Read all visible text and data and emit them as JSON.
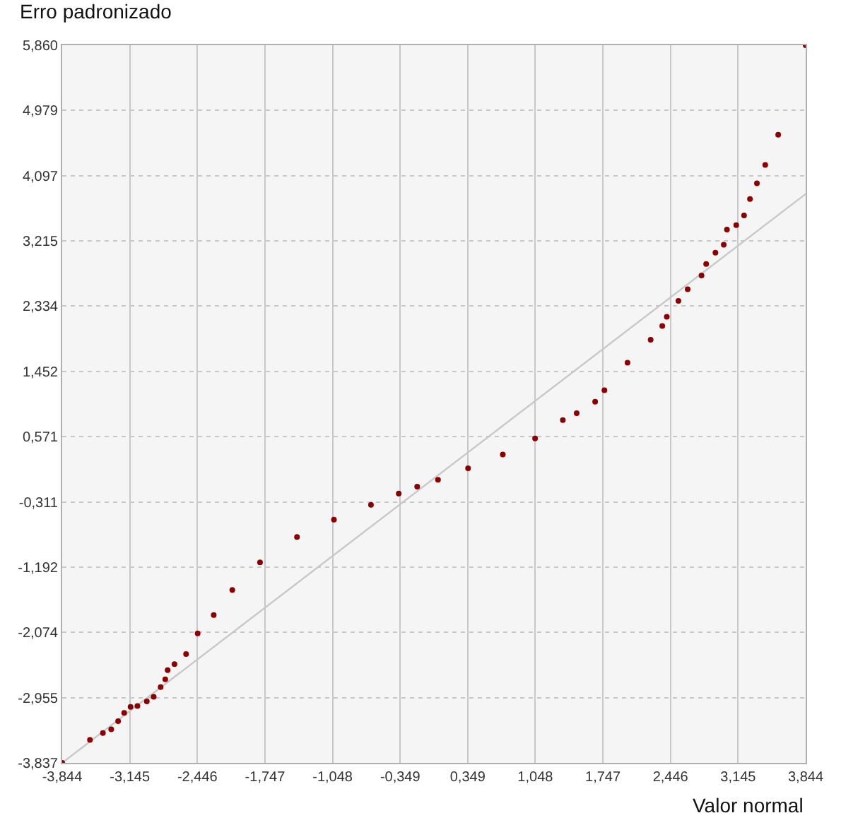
{
  "chart_data": {
    "type": "scatter",
    "ylabel": "Erro padronizado",
    "xlabel": "Valor normal",
    "xlim": [
      -3.844,
      3.844
    ],
    "ylim": [
      -3.837,
      5.86
    ],
    "xticks": [
      {
        "value": -3.844,
        "label": "-3,844"
      },
      {
        "value": -3.145,
        "label": "-3,145"
      },
      {
        "value": -2.446,
        "label": "-2,446"
      },
      {
        "value": -1.747,
        "label": "-1,747"
      },
      {
        "value": -1.048,
        "label": "-1,048"
      },
      {
        "value": -0.349,
        "label": "-0,349"
      },
      {
        "value": 0.349,
        "label": "0,349"
      },
      {
        "value": 1.048,
        "label": "1,048"
      },
      {
        "value": 1.747,
        "label": "1,747"
      },
      {
        "value": 2.446,
        "label": "2,446"
      },
      {
        "value": 3.145,
        "label": "3,145"
      },
      {
        "value": 3.844,
        "label": "3,844"
      }
    ],
    "yticks": [
      {
        "value": -3.837,
        "label": "-3,837"
      },
      {
        "value": -2.955,
        "label": "-2,955"
      },
      {
        "value": -2.074,
        "label": "-2,074"
      },
      {
        "value": -1.192,
        "label": "-1,192"
      },
      {
        "value": -0.311,
        "label": "-0,311"
      },
      {
        "value": 0.571,
        "label": "0,571"
      },
      {
        "value": 1.452,
        "label": "1,452"
      },
      {
        "value": 2.334,
        "label": "2,334"
      },
      {
        "value": 3.215,
        "label": "3,215"
      },
      {
        "value": 4.097,
        "label": "4,097"
      },
      {
        "value": 4.979,
        "label": "4,979"
      },
      {
        "value": 5.86,
        "label": "5,860"
      }
    ],
    "grid": true,
    "marker": "circle",
    "series": [
      {
        "type": "line",
        "marker": "none",
        "color": "#c8c8c8",
        "x": [
          -3.844,
          3.844
        ],
        "values": [
          -3.837,
          3.85
        ]
      },
      {
        "color": "#8b0000",
        "x": [
          -3.844,
          -3.557,
          -3.423,
          -3.337,
          -3.266,
          -3.203,
          -3.137,
          -3.066,
          -2.969,
          -2.898,
          -2.826,
          -2.778,
          -2.754,
          -2.683,
          -2.563,
          -2.443,
          -2.277,
          -2.085,
          -1.798,
          -1.416,
          -1.034,
          -0.651,
          -0.364,
          -0.173,
          0.042,
          0.353,
          0.712,
          1.046,
          1.333,
          1.476,
          1.667,
          1.763,
          2.002,
          2.241,
          2.361,
          2.408,
          2.528,
          2.624,
          2.767,
          2.815,
          2.911,
          2.997,
          3.03,
          3.126,
          3.207,
          3.268,
          3.34,
          3.426,
          3.56,
          3.844
        ],
        "values": [
          -3.837,
          -3.527,
          -3.434,
          -3.384,
          -3.273,
          -3.161,
          -3.081,
          -3.068,
          -3.007,
          -2.944,
          -2.813,
          -2.709,
          -2.584,
          -2.504,
          -2.367,
          -2.088,
          -1.841,
          -1.5,
          -1.128,
          -0.786,
          -0.551,
          -0.352,
          -0.198,
          -0.105,
          -0.012,
          0.144,
          0.33,
          0.546,
          0.795,
          0.888,
          1.043,
          1.197,
          1.569,
          1.88,
          2.066,
          2.19,
          2.406,
          2.562,
          2.748,
          2.903,
          3.057,
          3.163,
          3.368,
          3.429,
          3.559,
          3.782,
          3.994,
          4.242,
          4.651,
          5.86
        ]
      }
    ]
  }
}
